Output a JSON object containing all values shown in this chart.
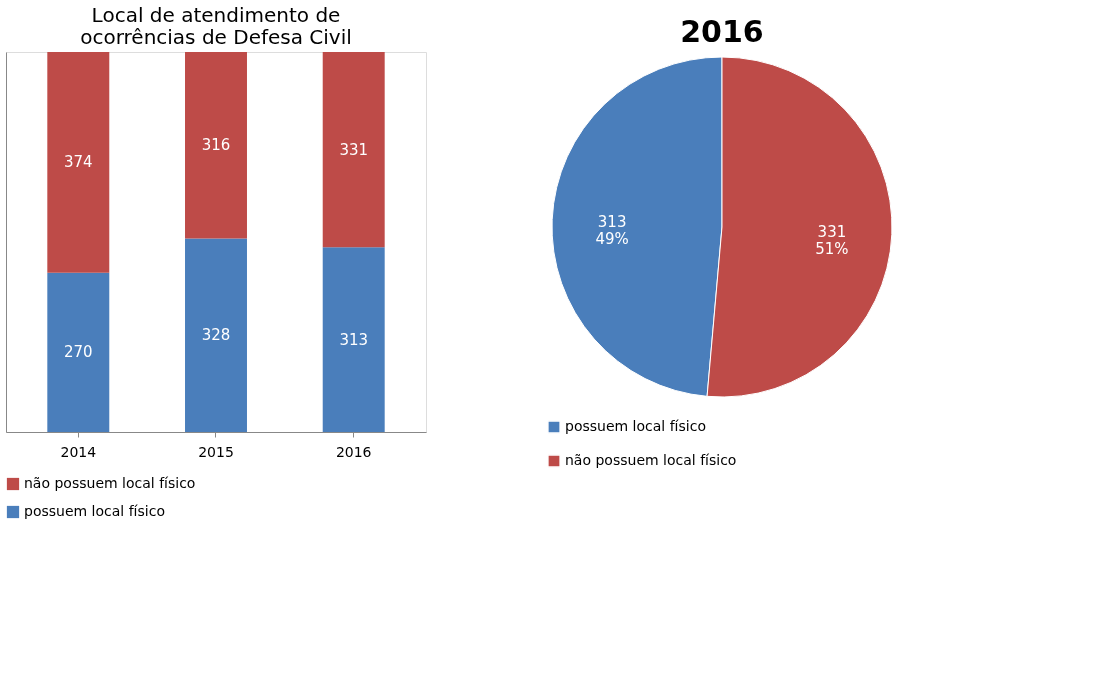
{
  "chart_data": [
    {
      "type": "bar",
      "title": "Local de atendimento de\nocorrências de Defesa Civil",
      "categories": [
        "2014",
        "2015",
        "2016"
      ],
      "stacked": true,
      "data_labels": true,
      "ylim": [
        0,
        644
      ],
      "tick_labels": "x",
      "grid": false,
      "legend": "bottom",
      "series": [
        {
          "name": "possuem  local físico",
          "color": "#4a7ebb",
          "values": [
            270,
            328,
            313
          ]
        },
        {
          "name": "não possuem local físico",
          "color": "#be4b48",
          "values": [
            374,
            316,
            331
          ]
        }
      ]
    },
    {
      "type": "pie",
      "title": "2016",
      "categories": [
        "possuem  local físico",
        "não possuem local físico"
      ],
      "values": [
        313,
        331
      ],
      "colors": [
        "#4a7ebb",
        "#be4b48"
      ],
      "value_labels": [
        "313\n49%",
        "331\n51%"
      ],
      "legend": "bottom"
    }
  ]
}
